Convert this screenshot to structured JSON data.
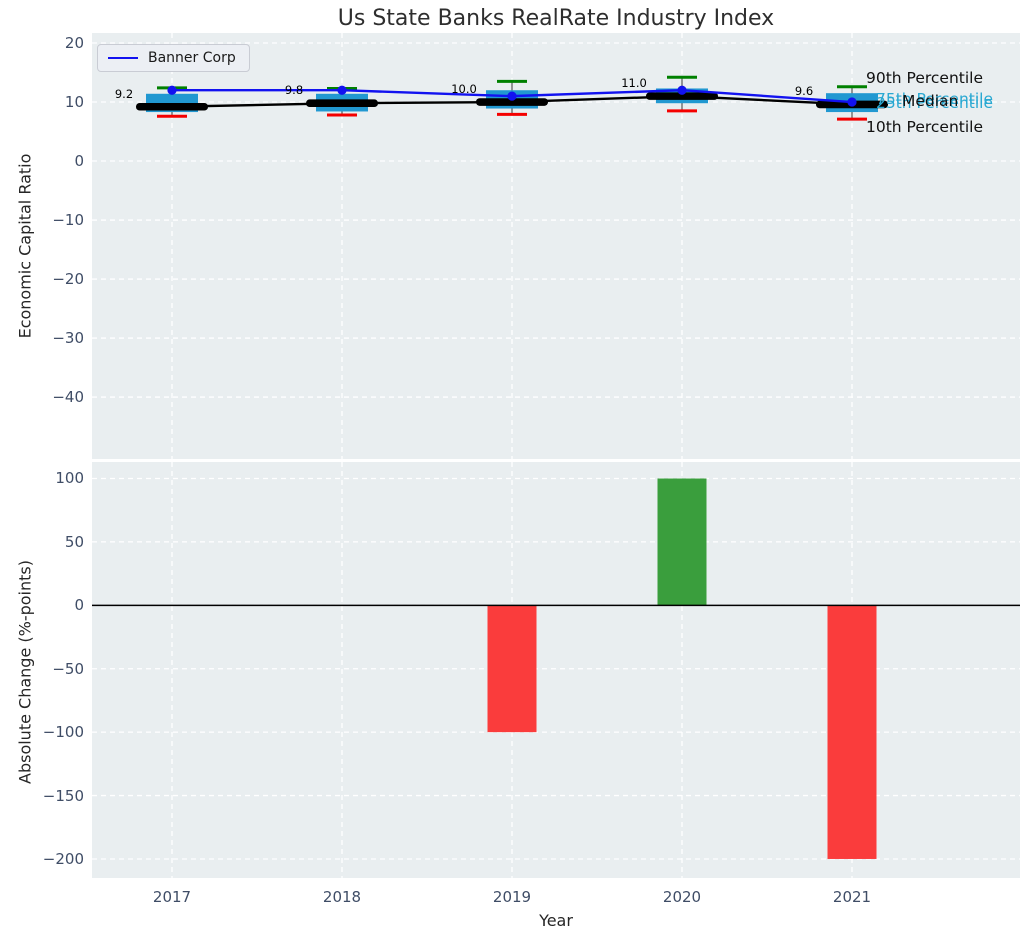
{
  "title": "Us State Banks RealRate Industry Index",
  "legend": {
    "label": "Banner Corp"
  },
  "annotations": {
    "p90": "90th Percentile",
    "p75": "75th Percentile",
    "median": "Median",
    "p25": "25th Percentile",
    "p10": "10th Percentile"
  },
  "colors": {
    "plot_background": "#e9eef0",
    "grid": "#ffffff",
    "banner_line": "#1212f0",
    "median_line": "#000000",
    "box_fill": "#2198d1",
    "whisker": "#555555",
    "p90_cap": "#008000",
    "p10_cap": "#f40000",
    "bar_positive": "#3a9e3d",
    "bar_negative": "#fa3c3c",
    "zero_line": "#000000",
    "tick_label": "#3f4d66",
    "percentile_text_cyan": "#29a8d2",
    "annotation_text": "#111111",
    "title_text": "#2e2e2e"
  },
  "chart_data": [
    {
      "type": "boxplot+line",
      "title": "Us State Banks RealRate Industry Index",
      "ylabel": "Economic Capital Ratio",
      "ylim": [
        -50.5,
        21.7
      ],
      "yticks": [
        20,
        10,
        0,
        -10,
        -20,
        -30,
        -40
      ],
      "categories": [
        "2017",
        "2018",
        "2019",
        "2020",
        "2021"
      ],
      "grid": true,
      "legend_position": "upper left",
      "series": [
        {
          "name": "Banner Corp",
          "type": "line",
          "values": [
            12,
            12,
            11,
            12,
            10
          ]
        },
        {
          "name": "Median",
          "type": "line",
          "values": [
            9.2,
            9.8,
            10.0,
            11.0,
            9.6
          ]
        }
      ],
      "boxes": [
        {
          "category": "2017",
          "p10": 7.6,
          "p25": 8.3,
          "median": 9.2,
          "p75": 11.4,
          "p90": 12.4
        },
        {
          "category": "2018",
          "p10": 7.8,
          "p25": 8.4,
          "median": 9.8,
          "p75": 11.4,
          "p90": 12.3
        },
        {
          "category": "2019",
          "p10": 7.9,
          "p25": 8.9,
          "median": 10.0,
          "p75": 12.0,
          "p90": 13.5
        },
        {
          "category": "2020",
          "p10": 8.5,
          "p25": 9.8,
          "median": 11.0,
          "p75": 12.3,
          "p90": 14.2
        },
        {
          "category": "2021",
          "p10": 7.1,
          "p25": 8.3,
          "median": 9.6,
          "p75": 11.5,
          "p90": 12.6
        }
      ],
      "median_labels": [
        "9.2",
        "9.8",
        "10.0",
        "11.0",
        "9.6"
      ]
    },
    {
      "type": "bar",
      "xlabel": "Year",
      "ylabel": "Absolute Change (%-points)",
      "ylim": [
        -215,
        113
      ],
      "yticks": [
        100,
        50,
        0,
        -50,
        -100,
        -150,
        -200
      ],
      "categories": [
        "2017",
        "2018",
        "2019",
        "2020",
        "2021"
      ],
      "values": [
        0,
        0,
        -100,
        100,
        -200
      ],
      "grid": true
    }
  ]
}
